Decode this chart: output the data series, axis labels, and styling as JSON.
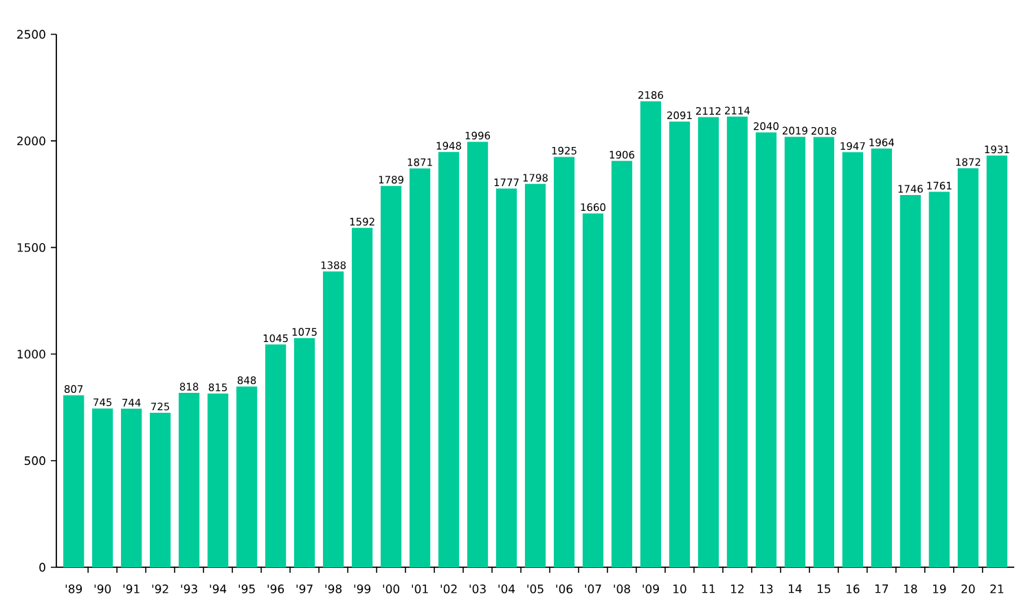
{
  "chart_data": {
    "type": "bar",
    "categories": [
      "'89",
      "'90",
      "'91",
      "'92",
      "'93",
      "'94",
      "'95",
      "'96",
      "'97",
      "'98",
      "'99",
      "'00",
      "'01",
      "'02",
      "'03",
      "'04",
      "'05",
      "'06",
      "'07",
      "'08",
      "'09",
      "10",
      "11",
      "12",
      "13",
      "14",
      "15",
      "16",
      "17",
      "18",
      "19",
      "20",
      "21"
    ],
    "values": [
      807,
      745,
      744,
      725,
      818,
      815,
      848,
      1045,
      1075,
      1388,
      1592,
      1789,
      1871,
      1948,
      1996,
      1777,
      1798,
      1925,
      1660,
      1906,
      2186,
      2091,
      2112,
      2114,
      2040,
      2019,
      2018,
      1947,
      1964,
      1746,
      1761,
      1872,
      1931
    ],
    "color": "#00cc99",
    "ylim": [
      0,
      2500
    ],
    "yticks": [
      0,
      500,
      1000,
      1500,
      2000,
      2500
    ],
    "data_labels": true
  }
}
